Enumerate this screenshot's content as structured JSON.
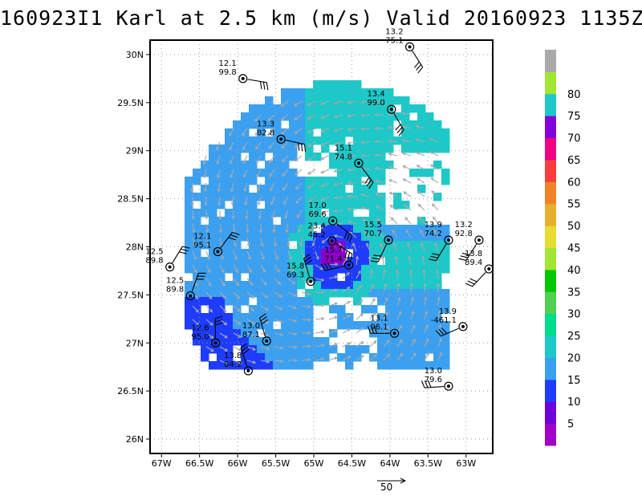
{
  "title": "160923I1 Karl at 2.5 km (m/s) Valid 20160923 1135Z",
  "reference_vector_label": "50",
  "colors": {
    "background": "#ffffff",
    "vector": "#a8a8a8",
    "barb": "#000000",
    "grid": "#9a9a9a"
  },
  "chart_data": {
    "type": "heatmap",
    "title": "160923I1 Karl at 2.5 km (m/s) Valid 20160923 1135Z",
    "xlim": [
      -67.15,
      -62.65
    ],
    "ylim": [
      25.85,
      30.15
    ],
    "x_ticks": [
      -67,
      -66.5,
      -66,
      -65.5,
      -65,
      -64.5,
      -64,
      -63.5,
      -63
    ],
    "x_tick_labels": [
      "67W",
      "66.5W",
      "66W",
      "65.5W",
      "65W",
      "64.5W",
      "64W",
      "63.5W",
      "63W"
    ],
    "y_ticks": [
      26,
      26.5,
      27,
      27.5,
      28,
      28.5,
      29,
      29.5,
      30
    ],
    "y_tick_labels": [
      "26N",
      "26.5N",
      "27N",
      "27.5N",
      "28N",
      "28.5N",
      "29N",
      "29.5N",
      "30N"
    ],
    "grid": true,
    "colorbar": {
      "levels": [
        5,
        10,
        15,
        20,
        25,
        30,
        35,
        40,
        45,
        50,
        55,
        60,
        65,
        70,
        75,
        80
      ],
      "labels": [
        "5",
        "10",
        "15",
        "20",
        "25",
        "30",
        "35",
        "40",
        "45",
        "50",
        "55",
        "60",
        "65",
        "70",
        "75",
        "80"
      ],
      "colors": [
        "#a000c8",
        "#6e00dc",
        "#1e3cff",
        "#3ca0f0",
        "#1ec8c8",
        "#00dc8c",
        "#50d050",
        "#00c800",
        "#a0e632",
        "#e6dc32",
        "#e6af2d",
        "#f08228",
        "#fa3c3c",
        "#f00082",
        "#8200dc",
        "#1ec8c8",
        "#a0e632",
        "#aaaaaa"
      ]
    },
    "center": {
      "lon": -64.75,
      "lat": 27.95
    },
    "dropsondes": [
      {
        "lon": -63.74,
        "lat": 30.08,
        "speed": "13.2",
        "dir": "75.1"
      },
      {
        "lon": -65.93,
        "lat": 29.75,
        "speed": "12.1",
        "dir": "99.8"
      },
      {
        "lon": -63.98,
        "lat": 29.43,
        "speed": "13.4",
        "dir": "99.0"
      },
      {
        "lon": -65.43,
        "lat": 29.12,
        "speed": "13.3",
        "dir": "82.8"
      },
      {
        "lon": -64.41,
        "lat": 28.87,
        "speed": "15.1",
        "dir": "74.8"
      },
      {
        "lon": -64.75,
        "lat": 28.27,
        "speed": "17.0",
        "dir": "69.6"
      },
      {
        "lon": -64.76,
        "lat": 28.06,
        "speed": "23.4",
        "dir": "45.2"
      },
      {
        "lon": -64.02,
        "lat": 28.07,
        "speed": "15.5",
        "dir": "70.7"
      },
      {
        "lon": -63.23,
        "lat": 28.07,
        "speed": "13.9",
        "dir": "74.2"
      },
      {
        "lon": -62.83,
        "lat": 28.07,
        "speed": "13.2",
        "dir": "92.8"
      },
      {
        "lon": -66.26,
        "lat": 27.95,
        "speed": "12.1",
        "dir": "95.1"
      },
      {
        "lon": -64.54,
        "lat": 27.81,
        "speed": "15.7",
        "dir": "71.4"
      },
      {
        "lon": -66.89,
        "lat": 27.79,
        "speed": "12.5",
        "dir": "89.8"
      },
      {
        "lon": -62.7,
        "lat": 27.77,
        "speed": "13.8",
        "dir": "89.4"
      },
      {
        "lon": -65.04,
        "lat": 27.64,
        "speed": "15.8",
        "dir": "69.3"
      },
      {
        "lon": -66.62,
        "lat": 27.49,
        "speed": "12.5",
        "dir": "89.8"
      },
      {
        "lon": -63.04,
        "lat": 27.17,
        "speed": "13.9",
        "dir": "-461.1"
      },
      {
        "lon": -63.94,
        "lat": 27.1,
        "speed": "13.1",
        "dir": "96.1"
      },
      {
        "lon": -66.29,
        "lat": 27.0,
        "speed": "12.6",
        "dir": "95.0"
      },
      {
        "lon": -65.62,
        "lat": 27.02,
        "speed": "13.0",
        "dir": "87.1"
      },
      {
        "lon": -65.86,
        "lat": 26.71,
        "speed": "13.8",
        "dir": "84.2"
      },
      {
        "lon": -63.23,
        "lat": 26.55,
        "speed": "13.0",
        "dir": "79.6"
      }
    ]
  }
}
